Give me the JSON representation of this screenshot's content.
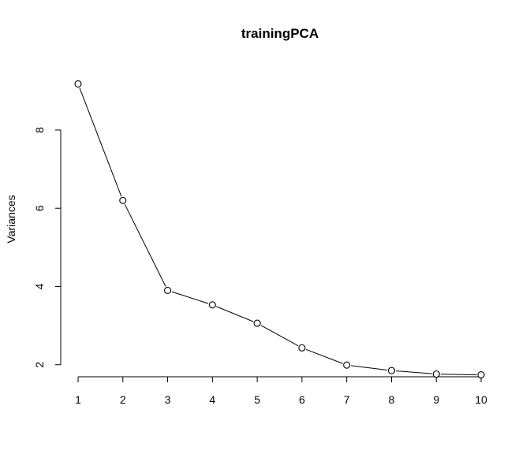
{
  "chart_data": {
    "type": "line",
    "title": "trainingPCA",
    "xlabel": "",
    "ylabel": "Variances",
    "x": [
      1,
      2,
      3,
      4,
      5,
      6,
      7,
      8,
      9,
      10
    ],
    "series": [
      {
        "values": [
          9.18,
          6.2,
          3.9,
          3.53,
          3.06,
          2.43,
          1.99,
          1.85,
          1.76,
          1.74
        ]
      }
    ],
    "xticks": [
      1,
      2,
      3,
      4,
      5,
      6,
      7,
      8,
      9,
      10
    ],
    "yticks": [
      2,
      4,
      6,
      8
    ],
    "xlim": [
      1,
      10
    ],
    "ylim": [
      1.45,
      9.45
    ],
    "grid": false,
    "marker": "open-circle",
    "line_color": "#000000"
  }
}
